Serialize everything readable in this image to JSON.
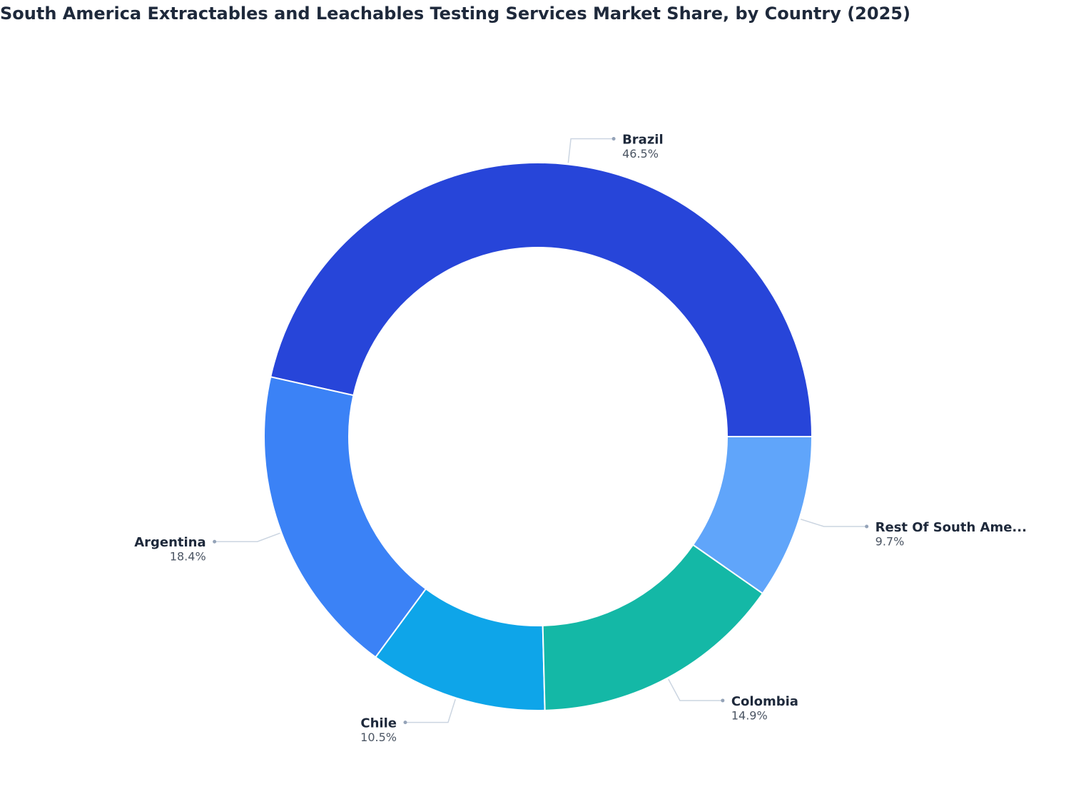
{
  "chart_data": {
    "type": "donut",
    "title": "South America Extractables and Leachables Testing Services Market Share, by Country (2025)",
    "categories": [
      "Brazil",
      "Argentina",
      "Chile",
      "Colombia",
      "Rest Of South Ame..."
    ],
    "values": [
      46.5,
      18.4,
      10.5,
      14.9,
      9.7
    ],
    "value_labels": [
      "46.5%",
      "18.4%",
      "10.5%",
      "14.9%",
      "9.7%"
    ],
    "colors": [
      "#2745d9",
      "#3b82f6",
      "#0ea5e9",
      "#14b8a6",
      "#60a5fa"
    ]
  }
}
